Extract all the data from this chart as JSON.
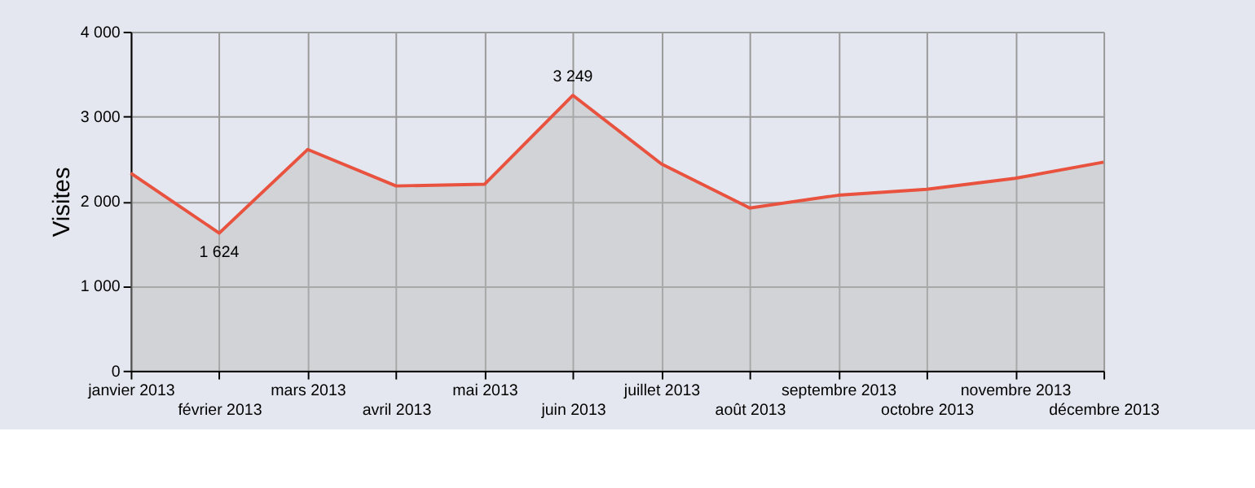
{
  "chart_data": {
    "type": "area",
    "ylabel": "Visites",
    "categories": [
      "janvier 2013",
      "février 2013",
      "mars 2013",
      "avril 2013",
      "mai 2013",
      "juin 2013",
      "juillet 2013",
      "août 2013",
      "septembre 2013",
      "octobre 2013",
      "novembre 2013",
      "décembre 2013"
    ],
    "series": [
      {
        "color": "#e8523f",
        "values": [
          2330,
          1624,
          2610,
          2180,
          2200,
          3249,
          2440,
          1920,
          2070,
          2140,
          2270,
          2460
        ],
        "value_labels": [
          null,
          "1 624",
          null,
          null,
          null,
          "3 249",
          null,
          null,
          null,
          null,
          null,
          null
        ]
      }
    ],
    "ylim": [
      0,
      4000
    ],
    "yticks": [
      {
        "value": 0,
        "label": "0"
      },
      {
        "value": 1000,
        "label": "1 000"
      },
      {
        "value": 2000,
        "label": "2 000"
      },
      {
        "value": 3000,
        "label": "3 000"
      },
      {
        "value": 4000,
        "label": "4 000"
      }
    ],
    "grid": true
  }
}
